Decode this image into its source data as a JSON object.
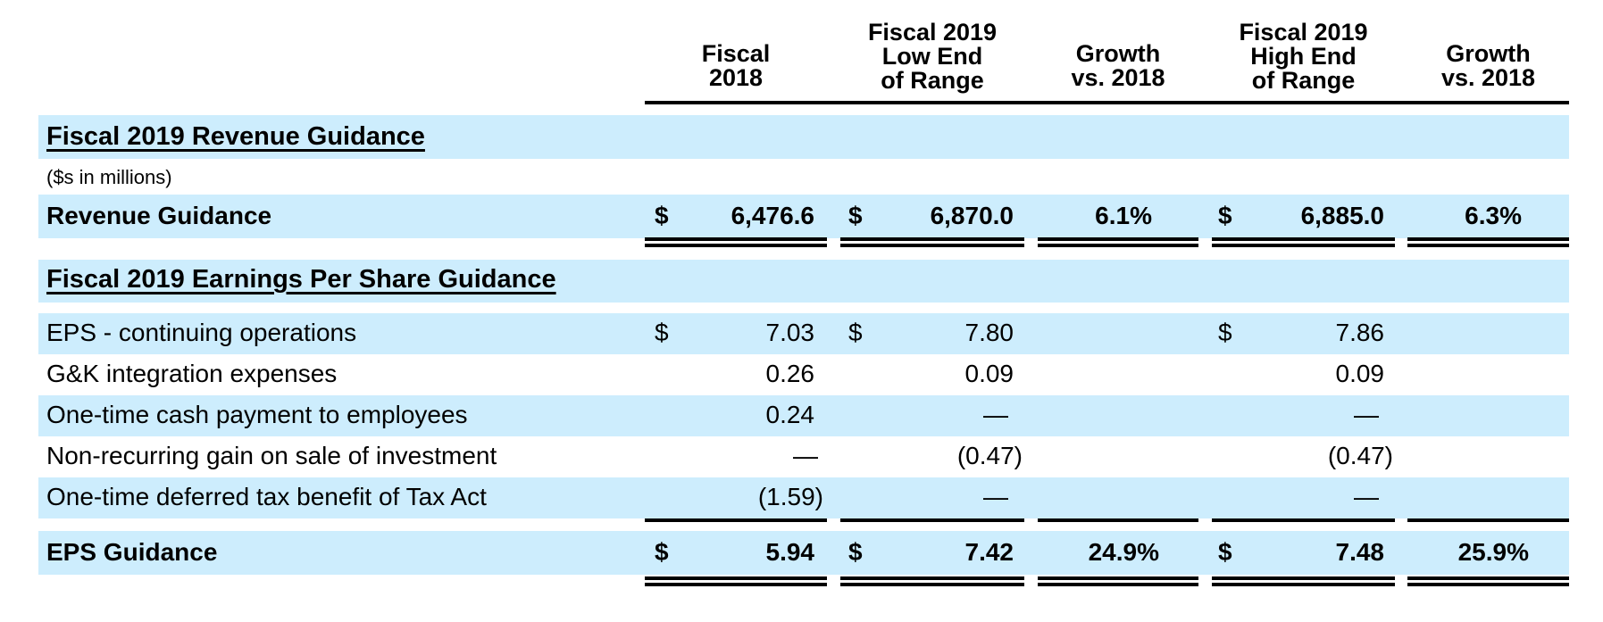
{
  "columns": [
    {
      "lines": [
        "Fiscal",
        "2018"
      ]
    },
    {
      "lines": [
        "Fiscal 2019",
        "Low End",
        "of Range"
      ]
    },
    {
      "lines": [
        "Growth",
        "vs. 2018"
      ]
    },
    {
      "lines": [
        "Fiscal 2019",
        "High End",
        "of Range"
      ]
    },
    {
      "lines": [
        "Growth",
        "vs. 2018"
      ]
    }
  ],
  "revenue_section": {
    "title": "Fiscal 2019 Revenue Guidance",
    "units": "($s in millions)",
    "row": {
      "label": "Revenue Guidance",
      "cur": "$",
      "fy2018": "6,476.6",
      "low": "6,870.0",
      "low_growth": "6.1%",
      "high": "6,885.0",
      "high_growth": "6.3%"
    }
  },
  "eps_section": {
    "title": "Fiscal 2019 Earnings Per Share Guidance",
    "rows": [
      {
        "label": "EPS - continuing operations",
        "cur": "$",
        "fy2018": "7.03",
        "low": "7.80",
        "high": "7.86"
      },
      {
        "label": "G&K integration expenses",
        "fy2018": "0.26",
        "low": "0.09",
        "high": "0.09"
      },
      {
        "label": "One-time cash payment to employees",
        "fy2018": "0.24",
        "low": "—",
        "high": "—"
      },
      {
        "label": "Non-recurring gain on sale of investment",
        "fy2018": "—",
        "low": "(0.47)",
        "high": "(0.47)"
      },
      {
        "label": "One-time deferred tax benefit of Tax Act",
        "fy2018": "(1.59)",
        "low": "—",
        "high": "—"
      }
    ],
    "total": {
      "label": "EPS Guidance",
      "cur": "$",
      "fy2018": "5.94",
      "low": "7.42",
      "low_growth": "24.9%",
      "high": "7.48",
      "high_growth": "25.9%"
    }
  }
}
